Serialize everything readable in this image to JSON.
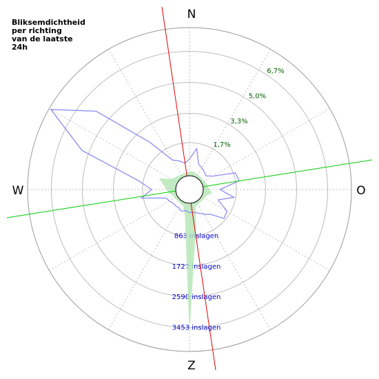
{
  "chart_data": {
    "type": "polar",
    "title": [
      "Bliksemdichtheid",
      "per richting",
      "van de laatste",
      "24h"
    ],
    "directions": [
      "N",
      "O",
      "Z",
      "W"
    ],
    "theta": [
      0,
      10,
      20,
      30,
      40,
      50,
      60,
      70,
      80,
      90,
      100,
      110,
      120,
      130,
      140,
      150,
      160,
      170,
      180,
      190,
      200,
      210,
      220,
      230,
      240,
      250,
      260,
      270,
      280,
      290,
      300,
      310,
      320,
      330,
      340,
      350
    ],
    "rlim": [
      0,
      8
    ],
    "rticks": [
      {
        "value": 1.7,
        "label": "1,7%"
      },
      {
        "value": 3.3,
        "label": "3,3%"
      },
      {
        "value": 5.0,
        "label": "5,0%"
      },
      {
        "value": 6.7,
        "label": "6,7%"
      }
    ],
    "r2lim": [
      0,
      4123
    ],
    "r2ticks": [
      {
        "value": 863,
        "label": "863 inslagen"
      },
      {
        "value": 1727,
        "label": "1727 inslagen"
      },
      {
        "value": 2590,
        "label": "2590 inslagen"
      },
      {
        "value": 3453,
        "label": "3453 inslagen"
      }
    ],
    "series": [
      {
        "color": "#8c8cf0",
        "values": [
          0.8,
          1.4,
          0.6,
          0.5,
          0.4,
          0.3,
          0.6,
          1.8,
          1.9,
          0.8,
          1.6,
          0.8,
          1.5,
          1.6,
          0.9,
          0.7,
          0.5,
          0.4,
          0.4,
          0.3,
          0.4,
          0.3,
          0.3,
          0.3,
          0.4,
          0.5,
          1.8,
          1.2,
          2.0,
          5.4,
          7.9,
          5.8,
          2.5,
          1.0,
          0.8,
          0.6
        ]
      },
      {
        "color": "#b4e6b4",
        "axis": "r2",
        "values": [
          50,
          80,
          40,
          30,
          20,
          20,
          30,
          60,
          80,
          120,
          200,
          60,
          40,
          30,
          20,
          30,
          60,
          600,
          3620,
          300,
          60,
          20,
          20,
          20,
          30,
          60,
          150,
          200,
          300,
          470,
          150,
          80,
          60,
          40,
          30,
          40
        ]
      }
    ]
  }
}
